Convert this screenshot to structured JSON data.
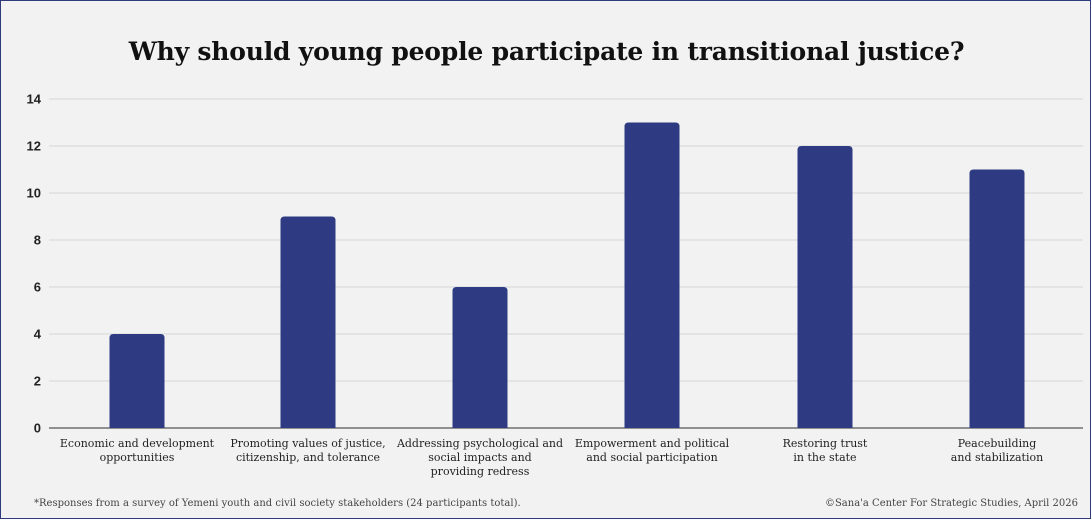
{
  "chart_data": {
    "type": "bar",
    "title": "Why should young people participate in transitional justice?",
    "categories": [
      "Economic and development opportunities",
      "Promoting values of justice, citizenship, and tolerance",
      "Addressing psychological and social impacts and providing redress",
      "Empowerment and political and social participation",
      "Restoring trust in the state",
      "Peacebuilding and stabilization"
    ],
    "category_lines": [
      [
        "Economic and development",
        "opportunities"
      ],
      [
        "Promoting values of justice,",
        "citizenship, and tolerance"
      ],
      [
        "Addressing psychological and",
        "social impacts and",
        "providing redress"
      ],
      [
        "Empowerment and political",
        "and social participation"
      ],
      [
        "Restoring trust",
        "in the state"
      ],
      [
        "Peacebuilding",
        "and stabilization"
      ]
    ],
    "values": [
      4,
      9,
      6,
      13,
      12,
      11
    ],
    "ylim": [
      0,
      14
    ],
    "yticks": [
      0,
      2,
      4,
      6,
      8,
      10,
      12,
      14
    ],
    "xlabel": "",
    "ylabel": "",
    "grid": true,
    "bar_color": "#2e3a82",
    "grid_color": "#d6d6d6"
  },
  "footnote": "*Responses from a survey of Yemeni youth and civil society stakeholders (24 participants total).",
  "credit": "©Sana'a Center For Strategic Studies, April 2026"
}
